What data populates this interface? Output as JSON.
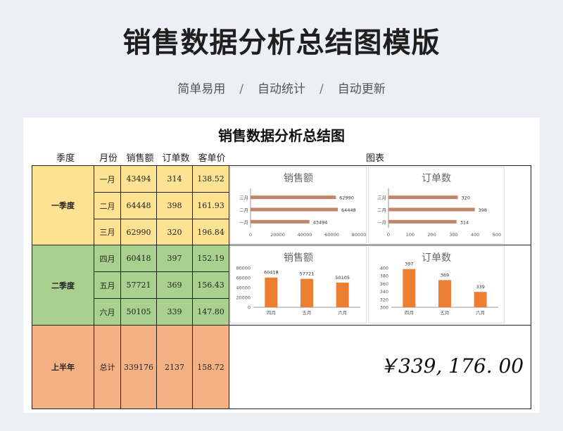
{
  "page": {
    "title": "销售数据分析总结图模版",
    "subtitle_items": [
      "简单易用",
      "自动统计",
      "自动更新"
    ],
    "separator": "/"
  },
  "sheet": {
    "title": "销售数据分析总结图",
    "headers": {
      "season": "季度",
      "month": "月份",
      "sales": "销售额",
      "orders": "订单数",
      "price": "客单价",
      "chart": "图表"
    },
    "q1": {
      "label": "一季度",
      "rows": [
        {
          "month": "一月",
          "sales": "43494",
          "orders": "314",
          "price": "138.52"
        },
        {
          "month": "二月",
          "sales": "64448",
          "orders": "398",
          "price": "161.93"
        },
        {
          "month": "三月",
          "sales": "62990",
          "orders": "320",
          "price": "196.84"
        }
      ]
    },
    "q2": {
      "label": "二季度",
      "rows": [
        {
          "month": "四月",
          "sales": "60418",
          "orders": "397",
          "price": "152.19"
        },
        {
          "month": "五月",
          "sales": "57721",
          "orders": "369",
          "price": "156.43"
        },
        {
          "month": "六月",
          "sales": "50105",
          "orders": "339",
          "price": "147.80"
        }
      ]
    },
    "half": {
      "label": "上半年",
      "month": "总计",
      "sales": "339176",
      "orders": "2137",
      "price": "158.72"
    },
    "total_display": "￥339, 176. 00",
    "colors": {
      "q1": "#fde392",
      "q2": "#a9d08e",
      "half": "#f4b183",
      "bar_q1": "#c0866a",
      "bar_q2": "#ed7d31"
    }
  },
  "chart_data": [
    {
      "type": "bar",
      "orientation": "horizontal",
      "title": "销售额",
      "categories": [
        "一月",
        "二月",
        "三月"
      ],
      "values": [
        43494,
        64448,
        62990
      ],
      "xlim": [
        0,
        80000
      ],
      "ticks": [
        0,
        20000,
        40000,
        60000,
        80000
      ]
    },
    {
      "type": "bar",
      "orientation": "horizontal",
      "title": "订单数",
      "categories": [
        "一月",
        "二月",
        "三月"
      ],
      "values": [
        314,
        398,
        320
      ],
      "xlim": [
        0,
        500
      ],
      "ticks": [
        0,
        100,
        200,
        300,
        400,
        500
      ]
    },
    {
      "type": "bar",
      "orientation": "vertical",
      "title": "销售额",
      "categories": [
        "四月",
        "五月",
        "六月"
      ],
      "values": [
        60418,
        57721,
        50105
      ],
      "ylim": [
        0,
        80000
      ],
      "ticks": [
        0,
        20000,
        40000,
        60000,
        80000
      ]
    },
    {
      "type": "bar",
      "orientation": "vertical",
      "title": "订单数",
      "categories": [
        "四月",
        "五月",
        "六月"
      ],
      "values": [
        397,
        369,
        339
      ],
      "ylim": [
        300,
        400
      ],
      "ticks": [
        300,
        320,
        340,
        360,
        380,
        400
      ]
    }
  ]
}
